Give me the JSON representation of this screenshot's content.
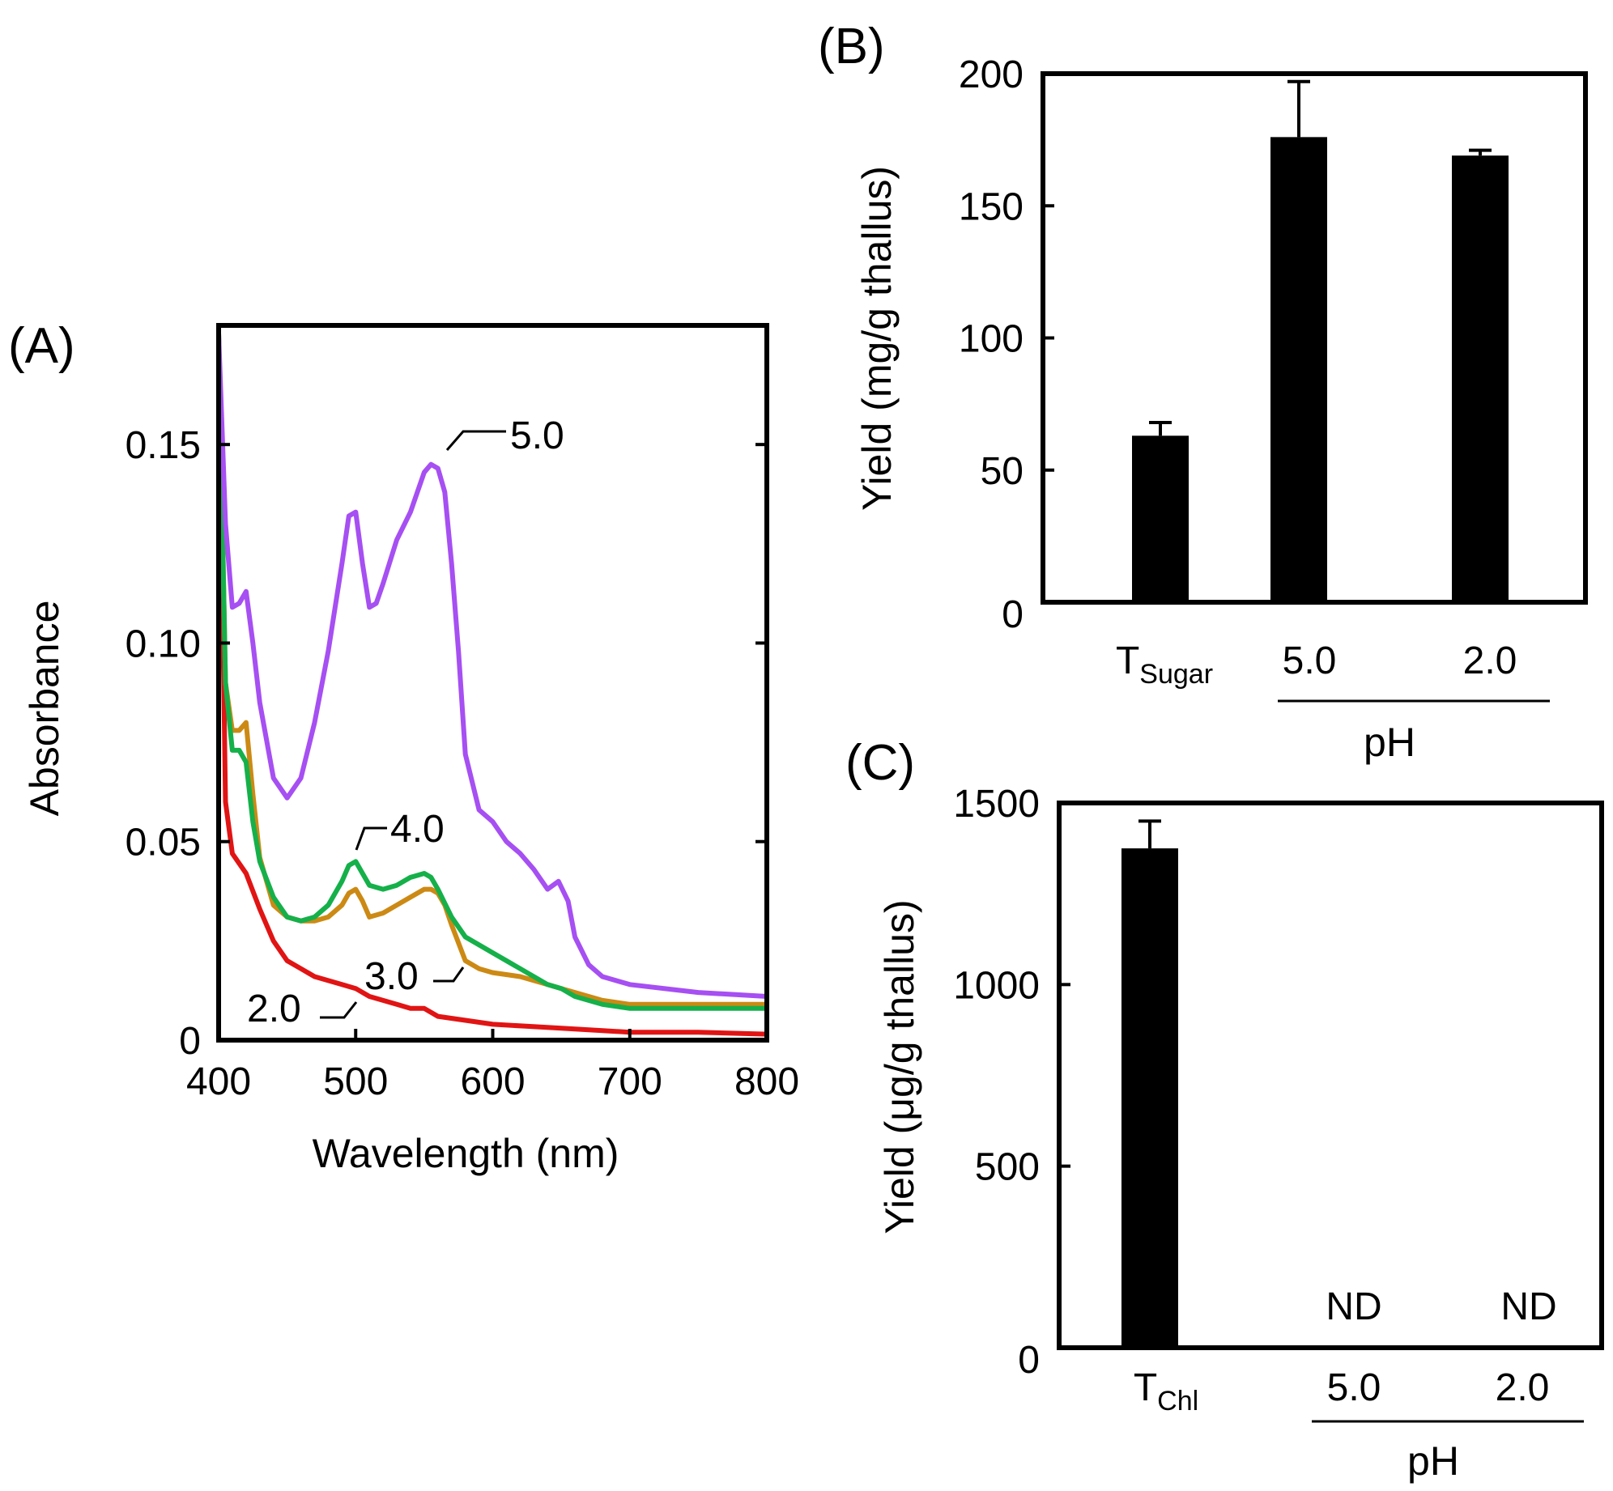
{
  "colors": {
    "ph_5_0": "#a64ff2",
    "ph_4_0": "#15b04a",
    "ph_3_0": "#cc8a14",
    "ph_2_0": "#e11414",
    "bar": "#000000",
    "axis": "#000000"
  },
  "chart_data": [
    {
      "id": "A",
      "panel_label": "(A)",
      "type": "line",
      "title": "",
      "xlabel": "Wavelength (nm)",
      "ylabel": "Absorbance",
      "xlim": [
        400,
        800
      ],
      "ylim": [
        0,
        0.18
      ],
      "xticks": [
        400,
        500,
        600,
        700,
        800
      ],
      "xtick_labels": [
        "400",
        "500",
        "600",
        "700",
        "800"
      ],
      "yticks": [
        0,
        0.05,
        0.1,
        0.15
      ],
      "ytick_labels": [
        "0",
        "0.05",
        "0.10",
        "0.15"
      ],
      "grid": false,
      "series": [
        {
          "name": "5.0",
          "label": "5.0",
          "color_key": "ph_5_0",
          "x": [
            400,
            405,
            410,
            415,
            420,
            425,
            430,
            440,
            450,
            460,
            470,
            480,
            490,
            495,
            500,
            505,
            510,
            515,
            520,
            530,
            540,
            550,
            555,
            560,
            565,
            570,
            575,
            580,
            590,
            600,
            610,
            620,
            630,
            640,
            648,
            655,
            660,
            670,
            680,
            700,
            750,
            800
          ],
          "y": [
            0.178,
            0.13,
            0.109,
            0.11,
            0.113,
            0.1,
            0.085,
            0.066,
            0.061,
            0.066,
            0.08,
            0.098,
            0.12,
            0.132,
            0.133,
            0.12,
            0.109,
            0.11,
            0.115,
            0.126,
            0.133,
            0.143,
            0.145,
            0.144,
            0.138,
            0.12,
            0.098,
            0.072,
            0.058,
            0.055,
            0.05,
            0.047,
            0.043,
            0.038,
            0.04,
            0.035,
            0.026,
            0.019,
            0.016,
            0.014,
            0.012,
            0.011
          ]
        },
        {
          "name": "4.0",
          "label": "4.0",
          "color_key": "ph_4_0",
          "x": [
            400,
            405,
            410,
            415,
            420,
            425,
            430,
            440,
            450,
            460,
            470,
            480,
            490,
            495,
            500,
            505,
            510,
            520,
            530,
            540,
            550,
            555,
            560,
            570,
            580,
            600,
            620,
            640,
            650,
            660,
            680,
            700,
            750,
            800
          ],
          "y": [
            0.178,
            0.09,
            0.073,
            0.073,
            0.07,
            0.055,
            0.045,
            0.036,
            0.031,
            0.03,
            0.031,
            0.034,
            0.04,
            0.044,
            0.045,
            0.042,
            0.039,
            0.038,
            0.039,
            0.041,
            0.042,
            0.041,
            0.038,
            0.031,
            0.026,
            0.022,
            0.018,
            0.014,
            0.013,
            0.011,
            0.009,
            0.008,
            0.008,
            0.008
          ]
        },
        {
          "name": "3.0",
          "label": "3.0",
          "color_key": "ph_3_0",
          "x": [
            400,
            405,
            410,
            415,
            420,
            425,
            430,
            440,
            450,
            460,
            470,
            480,
            490,
            495,
            500,
            505,
            510,
            520,
            530,
            540,
            550,
            555,
            560,
            565,
            570,
            580,
            590,
            600,
            620,
            640,
            650,
            660,
            680,
            700,
            750,
            800
          ],
          "y": [
            0.178,
            0.09,
            0.078,
            0.078,
            0.08,
            0.062,
            0.046,
            0.034,
            0.031,
            0.03,
            0.03,
            0.031,
            0.034,
            0.037,
            0.038,
            0.035,
            0.031,
            0.032,
            0.034,
            0.036,
            0.038,
            0.038,
            0.037,
            0.034,
            0.029,
            0.02,
            0.018,
            0.017,
            0.016,
            0.014,
            0.013,
            0.012,
            0.01,
            0.009,
            0.009,
            0.009
          ]
        },
        {
          "name": "2.0",
          "label": "2.0",
          "color_key": "ph_2_0",
          "x": [
            400,
            405,
            410,
            420,
            430,
            440,
            450,
            460,
            470,
            480,
            490,
            500,
            510,
            520,
            530,
            540,
            550,
            560,
            580,
            600,
            650,
            700,
            750,
            800
          ],
          "y": [
            0.176,
            0.06,
            0.047,
            0.042,
            0.033,
            0.025,
            0.02,
            0.018,
            0.016,
            0.015,
            0.014,
            0.013,
            0.011,
            0.01,
            0.009,
            0.008,
            0.008,
            0.006,
            0.005,
            0.004,
            0.003,
            0.002,
            0.002,
            0.0015
          ]
        }
      ]
    },
    {
      "id": "B",
      "panel_label": "(B)",
      "type": "bar",
      "title": "",
      "xlabel": "",
      "ylabel": "Yield (mg/g thallus)",
      "ylim": [
        0,
        200
      ],
      "yticks": [
        0,
        50,
        100,
        150,
        200
      ],
      "ytick_labels": [
        "0",
        "50",
        "100",
        "150",
        "200"
      ],
      "grid": false,
      "categories": [
        {
          "main": "T",
          "sub": "Sugar"
        },
        {
          "main": "5.0",
          "sub": ""
        },
        {
          "main": "2.0",
          "sub": ""
        }
      ],
      "values": [
        63,
        176,
        169
      ],
      "errors": [
        5,
        21,
        2
      ],
      "group_label": "pH"
    },
    {
      "id": "C",
      "panel_label": "(C)",
      "type": "bar",
      "title": "",
      "xlabel": "",
      "ylabel": "Yield (μg/g thallus)",
      "ylim": [
        0,
        1500
      ],
      "yticks": [
        0,
        500,
        1000,
        1500
      ],
      "ytick_labels": [
        "0",
        "500",
        "1000",
        "1500"
      ],
      "grid": false,
      "categories": [
        {
          "main": "T",
          "sub": "Chl"
        },
        {
          "main": "5.0",
          "sub": ""
        },
        {
          "main": "2.0",
          "sub": ""
        }
      ],
      "values": [
        1375,
        0,
        0
      ],
      "errors": [
        75,
        0,
        0
      ],
      "value_annotations": [
        "",
        "ND",
        "ND"
      ],
      "group_label": "pH"
    }
  ]
}
